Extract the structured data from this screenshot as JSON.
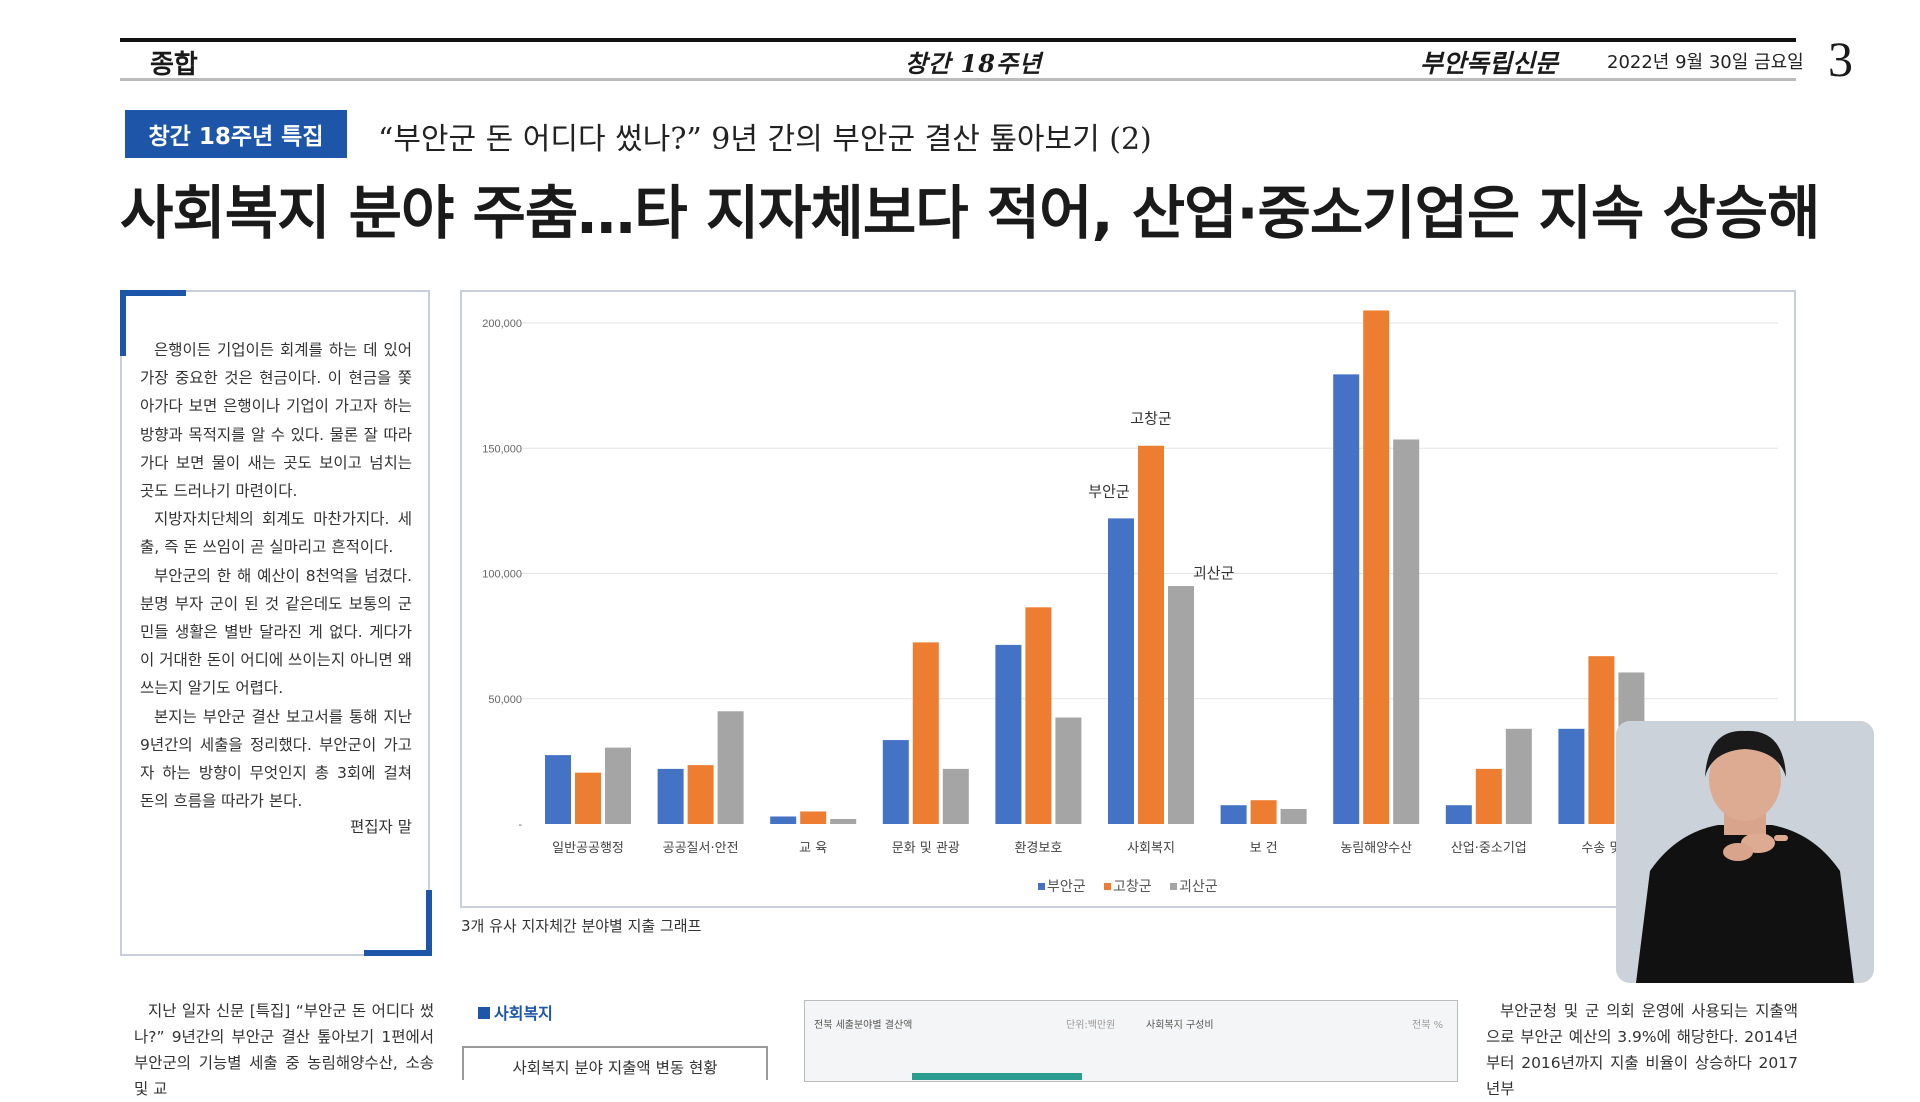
{
  "header": {
    "section": "종합",
    "anniversary": "창간 18주년",
    "paper_name": "부안독립신문",
    "date": "2022년 9월 30일 금요일",
    "page_number": "3"
  },
  "article": {
    "badge": "창간 18주년 특집",
    "subheadline": "“부안군 돈 어디다 썼나?” 9년 간의 부안군 결산 톺아보기 (2)",
    "headline": "사회복지 분야 주춤…타 지자체보다 적어, 산업·중소기업은 지속 상승해"
  },
  "editor_note": {
    "paragraphs": [
      "은행이든 기업이든 회계를 하는 데 있어 가장 중요한 것은 현금이다. 이 현금을 쫓아가다 보면 은행이나 기업이 가고자 하는 방향과 목적지를 알 수 있다. 물론 잘 따라가다 보면 물이 새는 곳도 보이고 넘치는 곳도 드러나기 마련이다.",
      "지방자치단체의 회계도 마찬가지다. 세출, 즉 돈 쓰임이 곧 실마리고 흔적이다.",
      "부안군의 한 해 예산이 8천억을 넘겼다. 분명 부자 군이 된 것 같은데도 보통의 군민들 생활은 별반 달라진 게 없다. 게다가 이 거대한 돈이 어디에 쓰이는지 아니면 왜 쓰는지 알기도 어렵다.",
      "본지는 부안군 결산 보고서를 통해 지난 9년간의 세출을 정리했다. 부안군이 가고자 하는 방향이 무엇인지 총 3회에 걸쳐 돈의 흐름을 따라가 본다."
    ],
    "signature": "편집자 말"
  },
  "chart_caption": "3개 유사 지자체간 분야별 지출 그래프",
  "chart_data": {
    "type": "bar",
    "title": "",
    "xlabel": "",
    "ylabel": "",
    "ylim": [
      0,
      200000
    ],
    "yticks": [
      0,
      50000,
      100000,
      150000,
      200000
    ],
    "ytick_labels": [
      "-",
      "50,000",
      "100,000",
      "150,000",
      "200,000"
    ],
    "grid": true,
    "legend_position": "bottom-center",
    "categories": [
      "일반공공행정",
      "공공질서·안전",
      "교 육",
      "문화 및 관광",
      "환경보호",
      "사회복지",
      "보 건",
      "농림해양수산",
      "산업·중소기업",
      "수송 및 교통"
    ],
    "category_labels": [
      "일반공공행정",
      "공공질서·안전",
      "교 육",
      "문화 및 관광",
      "환경보호",
      "사회복지",
      "보 건",
      "농림해양수산",
      "산업·중소기업",
      "수송 및"
    ],
    "series": [
      {
        "name": "부안군",
        "color": "#4472c4",
        "values": [
          27500,
          22000,
          3000,
          33500,
          71500,
          122000,
          7500,
          179500,
          7500,
          38000
        ]
      },
      {
        "name": "고창군",
        "color": "#ed7d31",
        "values": [
          20500,
          23500,
          5000,
          72500,
          86500,
          151000,
          9500,
          205000,
          22000,
          67000
        ]
      },
      {
        "name": "괴산군",
        "color": "#a5a5a5",
        "values": [
          30500,
          45000,
          2000,
          22000,
          42500,
          95000,
          6000,
          153500,
          38000,
          60500
        ]
      }
    ],
    "annotations": [
      {
        "text": "부안군",
        "category": "사회복지",
        "series": "부안군"
      },
      {
        "text": "고창군",
        "category": "사회복지",
        "series": "고창군"
      },
      {
        "text": "괴산군",
        "category": "사회복지",
        "series": "괴산군"
      }
    ]
  },
  "bottom": {
    "left_text": "지난 일자 신문 [특집] “부안군 돈 어디다 썼나?” 9년간의 부안군 결산 톺아보기 1편에서 부안군의 기능별 세출 중 농림해양수산, 소송 및 교",
    "section_label": "사회복지",
    "table_title": "사회복지 분야 지출액 변동 현황",
    "mini_left_title": "전북 세출분야별 결산액",
    "mini_left_unit": "단위:백만원",
    "mini_right_title": "사회복지 구성비",
    "mini_right_unit": "전북 %",
    "right_text": "부안군청 및 군 의회 운영에 사용되는 지출액으로 부안군 예산의 3.9%에 해당한다. 2014년부터 2016년까지 지출 비율이 상승하다 2017년부"
  },
  "colors": {
    "accent_blue": "#1d55a8",
    "series_blue": "#4472c4",
    "series_orange": "#ed7d31",
    "series_gray": "#a5a5a5"
  }
}
